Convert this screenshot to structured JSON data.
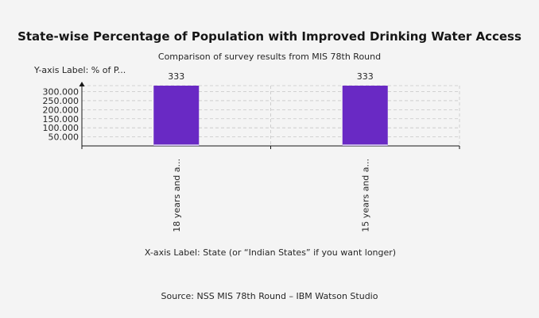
{
  "chart_data": {
    "type": "bar",
    "title": "State-wise Percentage of Population with Improved Drinking Water Access",
    "subtitle": "Comparison of survey results from MIS 78th Round",
    "ylabel": "Y-axis Label: % of P...",
    "xlabel": "X-axis Label: State (or “Indian States” if you want longer)",
    "categories": [
      "18 years and a...",
      "15 years and a..."
    ],
    "values": [
      333,
      333
    ],
    "data_labels": [
      "333",
      "333"
    ],
    "y_tick_labels": [
      "50.000",
      "100.000",
      "150.000",
      "200.000",
      "250.000",
      "300.000"
    ],
    "y_ticks": [
      50,
      100,
      150,
      200,
      250,
      300
    ],
    "ylim": [
      0,
      333
    ],
    "grid": true,
    "bar_color": "#6929c4",
    "bar_base_color": "#c5b3e6",
    "grid_color": "#c6c6c6"
  },
  "source": "Source: NSS MIS 78th Round – IBM Watson Studio"
}
